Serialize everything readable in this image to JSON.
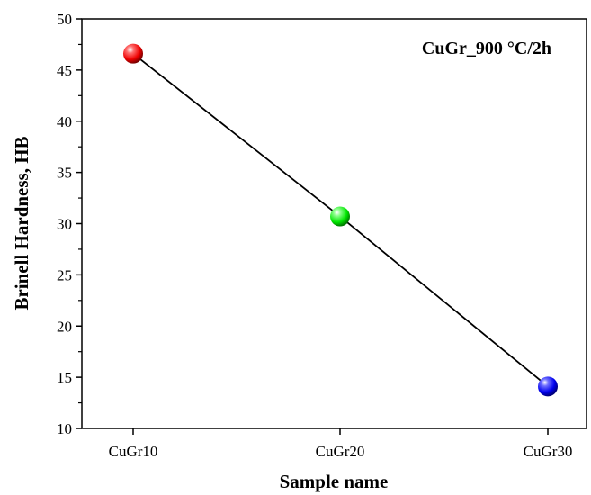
{
  "chart_data": {
    "type": "line",
    "categories": [
      "CuGr10",
      "CuGr20",
      "CuGr30"
    ],
    "series": [
      {
        "values": [
          46.6,
          30.7,
          14.1
        ],
        "marker_colors": [
          "#ff0000",
          "#00e600",
          "#0000ff"
        ],
        "line_color": "#000000"
      }
    ],
    "xlabel": "Sample name",
    "ylabel": "Brinell Hardness, HB",
    "ylim": [
      10,
      50
    ],
    "yticks": [
      10,
      15,
      20,
      25,
      30,
      35,
      40,
      45,
      50
    ],
    "annotation": "CuGr_900 °C/2h",
    "annotation_position": "top-right",
    "grid": false
  }
}
